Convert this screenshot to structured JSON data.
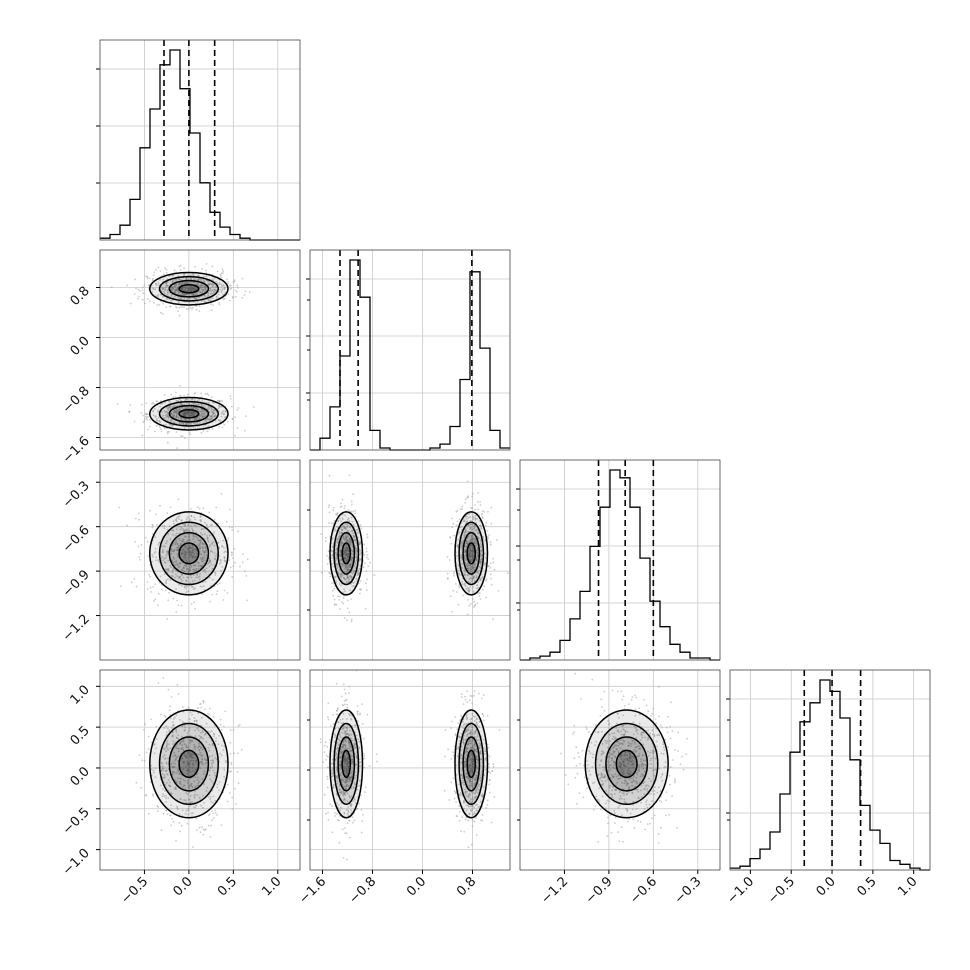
{
  "chart_data": {
    "type": "scatter",
    "title": "",
    "description_of_layout": "",
    "style": {
      "grid": true,
      "hist_color": "#000000",
      "contour_color": "#000000",
      "point_color": "#9a9a9a",
      "density_color": "#000000"
    },
    "parameters": [
      {
        "index": 0,
        "range": [
          -1.0,
          1.25
        ],
        "ticks": [
          -0.5,
          0.0,
          0.5,
          1.0
        ],
        "tick_labels": [
          "−0.5",
          "0.0",
          "0.5",
          "1.0"
        ],
        "quantiles": [
          -0.28,
          0.0,
          0.29
        ],
        "hist_counts": [
          1,
          3,
          8,
          22,
          50,
          71,
          95,
          103,
          82,
          58,
          31,
          15,
          7,
          3,
          1,
          0,
          0,
          0,
          0,
          0
        ]
      },
      {
        "index": 1,
        "range": [
          -1.8,
          1.4
        ],
        "ticks": [
          -1.6,
          -0.8,
          0.0,
          0.8
        ],
        "tick_labels": [
          "−1.6",
          "−0.8",
          "0.0",
          "0.8"
        ],
        "quantiles": [
          -1.32,
          -1.03,
          0.79
        ],
        "hist_counts": [
          0,
          6,
          22,
          48,
          97,
          78,
          10,
          1,
          0,
          0,
          0,
          0,
          1,
          3,
          12,
          36,
          91,
          52,
          10,
          1
        ]
      },
      {
        "index": 2,
        "range": [
          -1.5,
          -0.15
        ],
        "ticks": [
          -1.2,
          -0.9,
          -0.6,
          -0.3
        ],
        "tick_labels": [
          "−1.2",
          "−0.9",
          "−0.6",
          "−0.3"
        ],
        "quantiles": [
          -0.97,
          -0.79,
          -0.6
        ],
        "hist_counts": [
          0,
          1,
          2,
          4,
          10,
          21,
          35,
          58,
          78,
          97,
          93,
          78,
          52,
          30,
          17,
          8,
          4,
          1,
          1,
          0
        ]
      },
      {
        "index": 3,
        "range": [
          -1.25,
          1.2
        ],
        "ticks": [
          -1.0,
          -0.5,
          0.0,
          0.5,
          1.0
        ],
        "tick_labels": [
          "−1.0",
          "−0.5",
          "0.0",
          "0.5",
          "1.0"
        ],
        "quantiles": [
          -0.34,
          0.0,
          0.35
        ],
        "hist_counts": [
          1,
          2,
          6,
          11,
          20,
          40,
          62,
          78,
          88,
          100,
          94,
          80,
          58,
          34,
          21,
          14,
          5,
          3,
          1,
          0
        ]
      }
    ]
  }
}
